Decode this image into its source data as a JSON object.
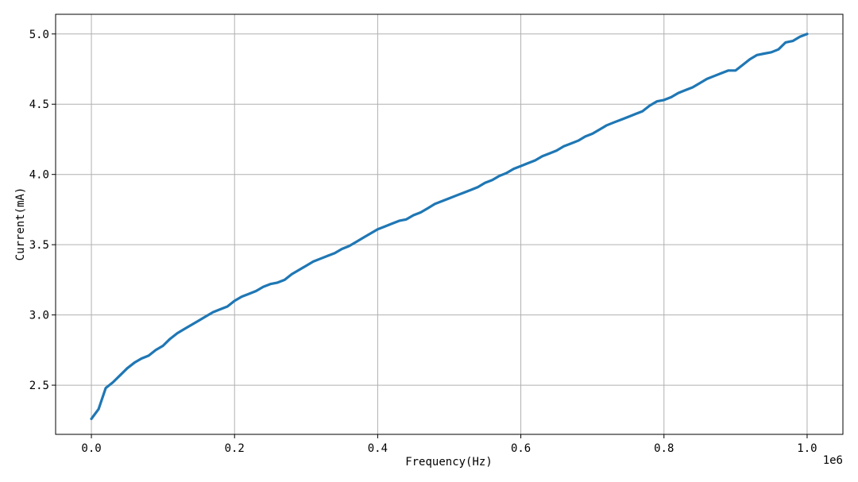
{
  "chart_data": {
    "type": "line",
    "xlabel": "Frequency(Hz)",
    "ylabel": "Current(mA)",
    "x_offset_text": "1e6",
    "x_scale_factor": 1000000,
    "xlim": [
      -50000,
      1050000
    ],
    "ylim": [
      2.15,
      5.14
    ],
    "grid": true,
    "x_ticks": [
      0,
      200000,
      400000,
      600000,
      800000,
      1000000
    ],
    "x_tick_labels": [
      "0.0",
      "0.2",
      "0.4",
      "0.6",
      "0.8",
      "1.0"
    ],
    "y_ticks": [
      2.5,
      3.0,
      3.5,
      4.0,
      4.5,
      5.0
    ],
    "y_tick_labels": [
      "2.5",
      "3.0",
      "3.5",
      "4.0",
      "4.5",
      "5.0"
    ],
    "series": [
      {
        "color": "#1f77b4",
        "x": [
          0,
          10000,
          20000,
          30000,
          40000,
          50000,
          60000,
          70000,
          80000,
          90000,
          100000,
          110000,
          120000,
          130000,
          140000,
          150000,
          160000,
          170000,
          180000,
          190000,
          200000,
          210000,
          220000,
          230000,
          240000,
          250000,
          260000,
          270000,
          280000,
          290000,
          300000,
          310000,
          320000,
          330000,
          340000,
          350000,
          360000,
          370000,
          380000,
          390000,
          400000,
          410000,
          420000,
          430000,
          440000,
          450000,
          460000,
          470000,
          480000,
          490000,
          500000,
          510000,
          520000,
          530000,
          540000,
          550000,
          560000,
          570000,
          580000,
          590000,
          600000,
          610000,
          620000,
          630000,
          640000,
          650000,
          660000,
          670000,
          680000,
          690000,
          700000,
          710000,
          720000,
          730000,
          740000,
          750000,
          760000,
          770000,
          780000,
          790000,
          800000,
          810000,
          820000,
          830000,
          840000,
          850000,
          860000,
          870000,
          880000,
          890000,
          900000,
          910000,
          920000,
          930000,
          940000,
          950000,
          960000,
          970000,
          980000,
          990000,
          1000000
        ],
        "y": [
          2.26,
          2.33,
          2.48,
          2.52,
          2.57,
          2.62,
          2.66,
          2.69,
          2.71,
          2.75,
          2.78,
          2.83,
          2.87,
          2.9,
          2.93,
          2.96,
          2.99,
          3.02,
          3.04,
          3.06,
          3.1,
          3.13,
          3.15,
          3.17,
          3.2,
          3.22,
          3.23,
          3.25,
          3.29,
          3.32,
          3.35,
          3.38,
          3.4,
          3.42,
          3.44,
          3.47,
          3.49,
          3.52,
          3.55,
          3.58,
          3.61,
          3.63,
          3.65,
          3.67,
          3.68,
          3.71,
          3.73,
          3.76,
          3.79,
          3.81,
          3.83,
          3.85,
          3.87,
          3.89,
          3.91,
          3.94,
          3.96,
          3.99,
          4.01,
          4.04,
          4.06,
          4.08,
          4.1,
          4.13,
          4.15,
          4.17,
          4.2,
          4.22,
          4.24,
          4.27,
          4.29,
          4.32,
          4.35,
          4.37,
          4.39,
          4.41,
          4.43,
          4.45,
          4.49,
          4.52,
          4.53,
          4.55,
          4.58,
          4.6,
          4.62,
          4.65,
          4.68,
          4.7,
          4.72,
          4.74,
          4.74,
          4.78,
          4.82,
          4.85,
          4.86,
          4.87,
          4.89,
          4.94,
          4.95,
          4.98,
          5.0
        ]
      }
    ]
  }
}
